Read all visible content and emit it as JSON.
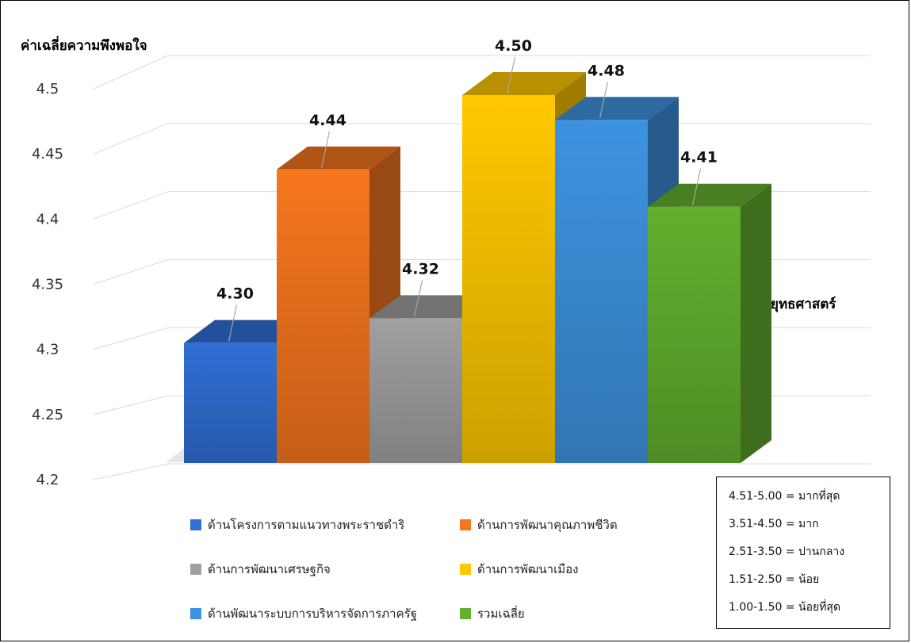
{
  "chart_data": {
    "type": "bar",
    "ylabel": "ค่าเฉลี่ยความพึงพอใจ",
    "ylim": [
      4.2,
      4.5
    ],
    "yticks": [
      "4.2",
      "4.25",
      "4.3",
      "4.35",
      "4.4",
      "4.45",
      "4.5"
    ],
    "grid": true,
    "legend_position": "bottom",
    "series": [
      {
        "name": "ด้านโครงการตามแนวทางพระราชดำริ",
        "value": 4.3,
        "label": "4.30",
        "color": "#2f6fd6"
      },
      {
        "name": "ด้านการพัฒนาคุณภาพชีวิต",
        "value": 4.44,
        "label": "4.44",
        "color": "#f6761e"
      },
      {
        "name": "ด้านการพัฒนาเศรษฐกิจ",
        "value": 4.32,
        "label": "4.32",
        "color": "#a0a0a0"
      },
      {
        "name": "ด้านการพัฒนาเมือง",
        "value": 4.5,
        "label": "4.50",
        "color": "#ffc800"
      },
      {
        "name": "ด้านพัฒนาระบบการบริหารจัดการภาครัฐ",
        "value": 4.48,
        "label": "4.48",
        "color": "#3d93e0"
      },
      {
        "name": "รวมเฉลี่ย",
        "value": 4.41,
        "label": "4.41",
        "color": "#62b02e"
      }
    ]
  },
  "side_text": "ยุทธศาสตร์",
  "rating_scale": [
    "4.51-5.00  = มากที่สุด",
    "3.51-4.50  = มาก",
    "2.51-3.50  = ปานกลาง",
    "1.51-2.50  = น้อย",
    "1.00-1.50  = น้อยที่สุด"
  ]
}
